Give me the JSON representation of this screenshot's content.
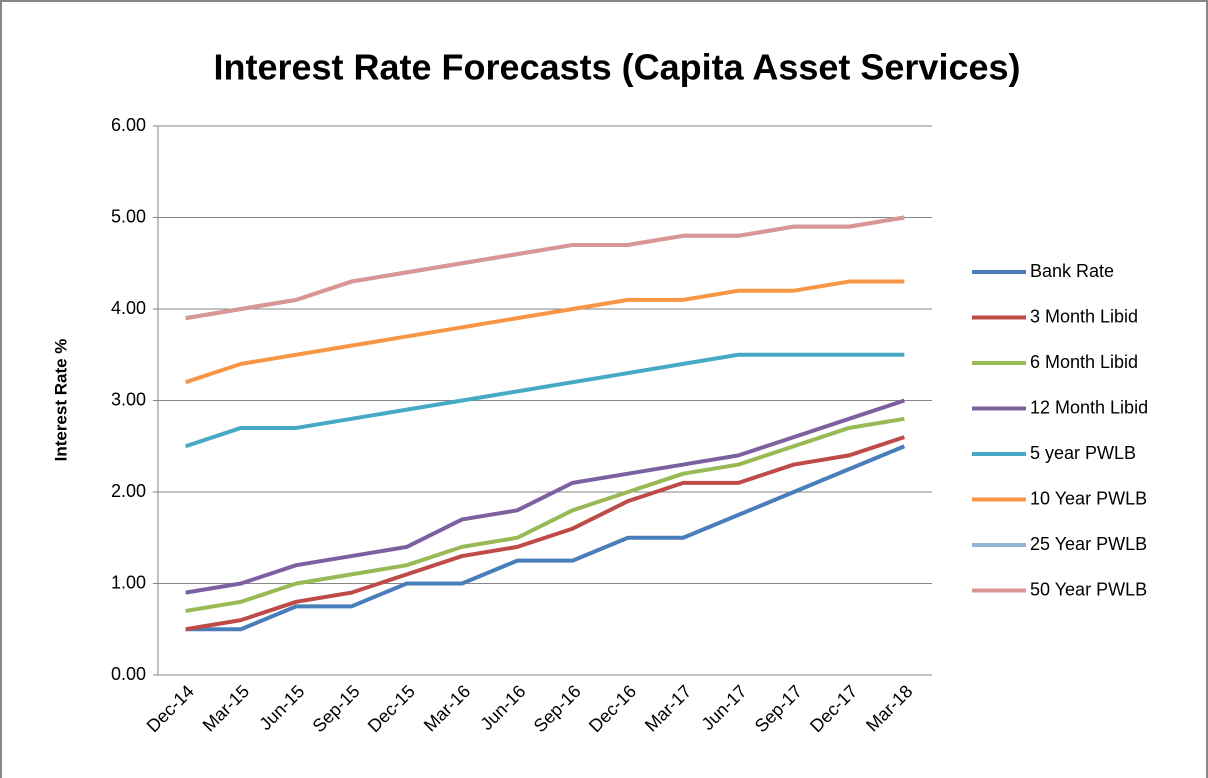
{
  "chart_data": {
    "type": "line",
    "title": "Interest Rate Forecasts (Capita Asset Services)",
    "y_label": "Interest Rate %",
    "categories": [
      "Dec-14",
      "Mar-15",
      "Jun-15",
      "Sep-15",
      "Dec-15",
      "Mar-16",
      "Jun-16",
      "Sep-16",
      "Dec-16",
      "Mar-17",
      "Jun-17",
      "Sep-17",
      "Dec-17",
      "Mar-18"
    ],
    "series": [
      {
        "name": "Bank Rate",
        "color": "#4a7ebb",
        "values": [
          0.5,
          0.5,
          0.75,
          0.75,
          1.0,
          1.0,
          1.25,
          1.25,
          1.5,
          1.5,
          1.75,
          2.0,
          2.25,
          2.5
        ]
      },
      {
        "name": "3 Month Libid",
        "color": "#be4b48",
        "values": [
          0.5,
          0.6,
          0.8,
          0.9,
          1.1,
          1.3,
          1.4,
          1.6,
          1.9,
          2.1,
          2.1,
          2.3,
          2.4,
          2.6
        ]
      },
      {
        "name": "6 Month Libid",
        "color": "#98b954",
        "values": [
          0.7,
          0.8,
          1.0,
          1.1,
          1.2,
          1.4,
          1.5,
          1.8,
          2.0,
          2.2,
          2.3,
          2.5,
          2.7,
          2.8
        ]
      },
      {
        "name": "12 Month Libid",
        "color": "#7d60a0",
        "values": [
          0.9,
          1.0,
          1.2,
          1.3,
          1.4,
          1.7,
          1.8,
          2.1,
          2.2,
          2.3,
          2.4,
          2.6,
          2.8,
          3.0
        ]
      },
      {
        "name": "5 year PWLB",
        "color": "#46aac5",
        "values": [
          2.5,
          2.7,
          2.7,
          2.8,
          2.9,
          3.0,
          3.1,
          3.2,
          3.3,
          3.4,
          3.5,
          3.5,
          3.5,
          3.5
        ]
      },
      {
        "name": "10 Year PWLB",
        "color": "#f79646",
        "values": [
          3.2,
          3.4,
          3.5,
          3.6,
          3.7,
          3.8,
          3.9,
          4.0,
          4.1,
          4.1,
          4.2,
          4.2,
          4.3,
          4.3
        ]
      },
      {
        "name": "25 Year PWLB",
        "color": "#95b3d7",
        "values": [
          3.9,
          4.0,
          4.1,
          4.3,
          4.4,
          4.5,
          4.6,
          4.7,
          4.7,
          4.8,
          4.8,
          4.9,
          4.9,
          5.0
        ]
      },
      {
        "name": "50 Year PWLB",
        "color": "#d99694",
        "values": [
          3.9,
          4.0,
          4.1,
          4.3,
          4.4,
          4.5,
          4.6,
          4.7,
          4.7,
          4.8,
          4.8,
          4.9,
          4.9,
          5.0
        ]
      }
    ],
    "ylim": [
      0,
      6
    ],
    "yticks": [
      {
        "value": 0,
        "label": "0.00"
      },
      {
        "value": 1,
        "label": "1.00"
      },
      {
        "value": 2,
        "label": "2.00"
      },
      {
        "value": 3,
        "label": "3.00"
      },
      {
        "value": 4,
        "label": "4.00"
      },
      {
        "value": 5,
        "label": "5.00"
      },
      {
        "value": 6,
        "label": "6.00"
      }
    ],
    "grid": true,
    "legend": "right"
  }
}
